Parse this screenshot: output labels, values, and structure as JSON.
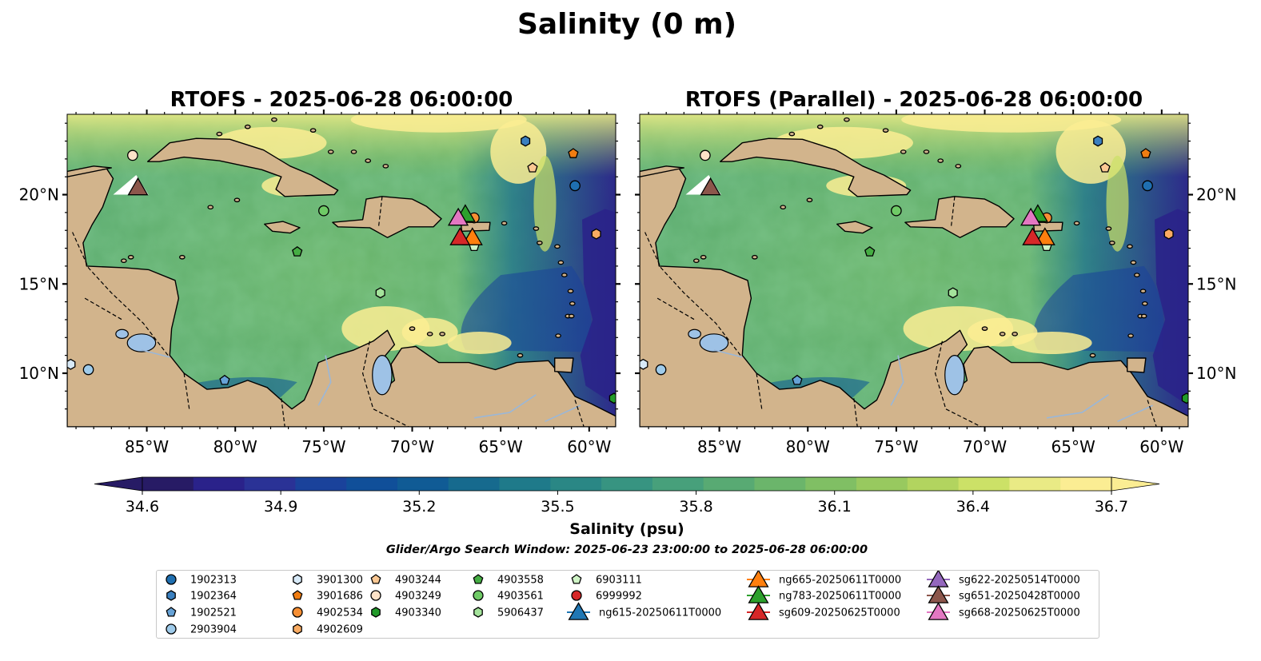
{
  "figure": {
    "suptitle": "Salinity (0 m)",
    "search_window": "Glider/Argo Search Window: 2025-06-23 23:00:00 to 2025-06-28 06:00:00"
  },
  "chart_data": [
    {
      "type": "heatmap",
      "title": "RTOFS - 2025-06-28 06:00:00",
      "x_tick_labels": [
        "85°W",
        "80°W",
        "75°W",
        "70°W",
        "65°W",
        "60°W"
      ],
      "y_tick_labels": [
        "20°N",
        "15°N",
        "10°N"
      ],
      "x_ticks": [
        -85,
        -80,
        -75,
        -70,
        -65,
        -60
      ],
      "y_ticks": [
        20,
        15,
        10
      ],
      "xlim": [
        -89.5,
        -58.5
      ],
      "ylim": [
        7,
        24.5
      ],
      "y_axis_side": "left"
    },
    {
      "type": "heatmap",
      "title": "RTOFS (Parallel) - 2025-06-28 06:00:00",
      "x_tick_labels": [
        "85°W",
        "80°W",
        "75°W",
        "70°W",
        "65°W",
        "60°W"
      ],
      "y_tick_labels": [
        "20°N",
        "15°N",
        "10°N"
      ],
      "x_ticks": [
        -85,
        -80,
        -75,
        -70,
        -65,
        -60
      ],
      "y_ticks": [
        20,
        15,
        10
      ],
      "xlim": [
        -89.5,
        -58.5
      ],
      "ylim": [
        7,
        24.5
      ],
      "y_axis_side": "right"
    }
  ],
  "colorbar": {
    "label": "Salinity (psu)",
    "range": [
      34.6,
      36.7
    ],
    "ticks": [
      34.6,
      34.9,
      35.2,
      35.5,
      35.8,
      36.1,
      36.4,
      36.7
    ],
    "tick_labels": [
      "34.6",
      "34.9",
      "35.2",
      "35.5",
      "35.8",
      "36.1",
      "36.4",
      "36.7"
    ],
    "colors": [
      "#271b65",
      "#2a228a",
      "#2a3296",
      "#1a429b",
      "#104f99",
      "#105b95",
      "#166a8e",
      "#1f7a8a",
      "#2a8785",
      "#379481",
      "#47a07b",
      "#58aa73",
      "#6bb56b",
      "#80bf64",
      "#98c95f",
      "#b2d45f",
      "#cce167",
      "#e9ea85",
      "#fbed93"
    ]
  },
  "legend": {
    "columns": [
      [
        {
          "label": "1902313",
          "marker": "circle",
          "color": "#1f6fb0"
        },
        {
          "label": "1902364",
          "marker": "hexagon",
          "color": "#3b80c0"
        },
        {
          "label": "1902521",
          "marker": "pentagon",
          "color": "#66a2d6"
        },
        {
          "label": "2903904",
          "marker": "circle",
          "color": "#9fcbea"
        }
      ],
      [
        {
          "label": "3901300",
          "marker": "hexagon",
          "color": "#d8eaf8"
        },
        {
          "label": "3901686",
          "marker": "pentagon",
          "color": "#f07d12"
        },
        {
          "label": "4902534",
          "marker": "circle",
          "color": "#f78f34"
        },
        {
          "label": "4902609",
          "marker": "hexagon",
          "color": "#f9ab62"
        }
      ],
      [
        {
          "label": "4903244",
          "marker": "pentagon",
          "color": "#fbc893"
        },
        {
          "label": "4903249",
          "marker": "circle",
          "color": "#fde2c8"
        },
        {
          "label": "4903340",
          "marker": "hexagon",
          "color": "#229b2a"
        }
      ],
      [
        {
          "label": "4903558",
          "marker": "pentagon",
          "color": "#45ad43"
        },
        {
          "label": "4903561",
          "marker": "circle",
          "color": "#6fca66"
        },
        {
          "label": "5906437",
          "marker": "hexagon",
          "color": "#a4e39b"
        }
      ],
      [
        {
          "label": "6903111",
          "marker": "pentagon",
          "color": "#cff4c6"
        },
        {
          "label": "6999992",
          "marker": "circle",
          "color": "#d62728"
        },
        {
          "label": "ng615-20250611T0000",
          "marker": "triangle",
          "color": "#1f77b4"
        }
      ],
      [
        {
          "label": "ng665-20250611T0000",
          "marker": "triangle",
          "color": "#ff7f0e"
        },
        {
          "label": "ng783-20250611T0000",
          "marker": "triangle",
          "color": "#2ca02c"
        },
        {
          "label": "sg609-20250625T0000",
          "marker": "triangle",
          "color": "#d62728"
        }
      ],
      [
        {
          "label": "sg622-20250514T0000",
          "marker": "triangle",
          "color": "#9467bd"
        },
        {
          "label": "sg651-20250428T0000",
          "marker": "triangle",
          "color": "#8c564b"
        },
        {
          "label": "sg668-20250625T0000",
          "marker": "triangle",
          "color": "#e377c2"
        }
      ]
    ]
  },
  "observations": [
    {
      "id": "1902313",
      "lon": -60.8,
      "lat": 20.5
    },
    {
      "id": "1902364",
      "lon": -63.6,
      "lat": 23.0
    },
    {
      "id": "1902521",
      "lon": -80.6,
      "lat": 9.6
    },
    {
      "id": "2903904",
      "lon": -88.3,
      "lat": 10.2
    },
    {
      "id": "3901300",
      "lon": -89.3,
      "lat": 10.5
    },
    {
      "id": "3901686",
      "lon": -60.9,
      "lat": 22.3
    },
    {
      "id": "4902534",
      "lon": -66.5,
      "lat": 18.7
    },
    {
      "id": "4902609",
      "lon": -59.6,
      "lat": 17.8
    },
    {
      "id": "4903244",
      "lon": -63.2,
      "lat": 21.5
    },
    {
      "id": "4903249",
      "lon": -85.8,
      "lat": 22.2
    },
    {
      "id": "4903340",
      "lon": -58.6,
      "lat": 8.6
    },
    {
      "id": "4903558",
      "lon": -76.5,
      "lat": 16.8
    },
    {
      "id": "4903561",
      "lon": -75.0,
      "lat": 19.1
    },
    {
      "id": "5906437",
      "lon": -71.8,
      "lat": 14.5
    },
    {
      "id": "6903111",
      "lon": -66.5,
      "lat": 17.1
    },
    {
      "id": "ng665-20250611T0000",
      "lon": -66.6,
      "lat": 17.6
    },
    {
      "id": "ng783-20250611T0000",
      "lon": -67.0,
      "lat": 18.9
    },
    {
      "id": "sg609-20250625T0000",
      "lon": -67.3,
      "lat": 17.6
    },
    {
      "id": "sg651-20250428T0000",
      "lon": -85.5,
      "lat": 20.4
    },
    {
      "id": "sg668-20250625T0000",
      "lon": -67.4,
      "lat": 18.7
    }
  ]
}
